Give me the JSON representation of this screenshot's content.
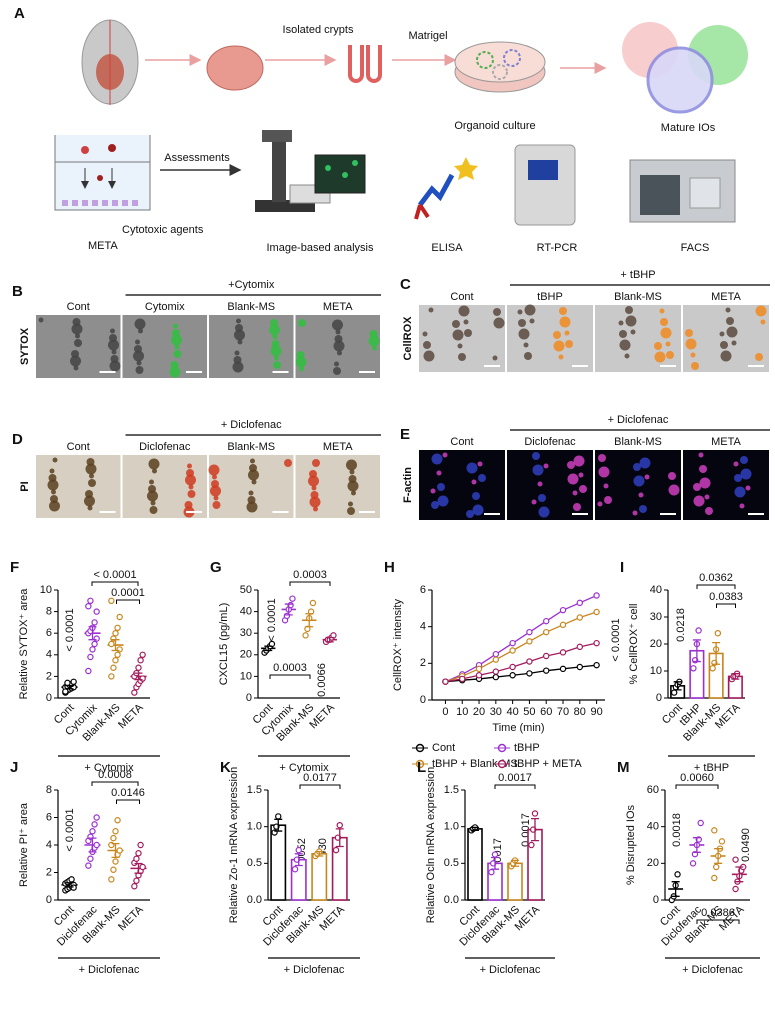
{
  "schematic": {
    "panel": "A",
    "labels": [
      "Isolated crypts",
      "Matrigel",
      "Organoid culture",
      "Mature IOs",
      "Assessments",
      "Cytotoxic agents",
      "META",
      "Image-based analysis",
      "ELISA",
      "RT-PCR",
      "FACS"
    ]
  },
  "images": [
    {
      "panel": "B",
      "stain": "SYTOX",
      "stain_color": "#1aa64a",
      "group": "+Cytomix",
      "columns": [
        "Cont",
        "Cytomix",
        "Blank-MS",
        "META"
      ]
    },
    {
      "panel": "C",
      "stain": "CellROX",
      "stain_color": "#d0202a",
      "group": "+ tBHP",
      "columns": [
        "Cont",
        "tBHP",
        "Blank-MS",
        "META"
      ]
    },
    {
      "panel": "D",
      "stain": "PI",
      "stain_color": "#d0202a",
      "group": "+ Diclofenac",
      "columns": [
        "Cont",
        "Diclofenac",
        "Blank-MS",
        "META"
      ]
    },
    {
      "panel": "E",
      "stain": "F-actin",
      "stain_color": "#d020c8",
      "group": "+ Diclofenac",
      "columns": [
        "Cont",
        "Diclofenac",
        "Blank-MS",
        "META"
      ]
    }
  ],
  "chart_data": [
    {
      "type": "dotplot",
      "panel": "F",
      "ylabel": "Relative SYTOX⁺ area",
      "group": "+ Cytomix",
      "categories": [
        "Cont",
        "Cytomix",
        "Blank-MS",
        "META"
      ],
      "colors": [
        "#000000",
        "#9b30d0",
        "#c8861e",
        "#a21b5c"
      ],
      "values": [
        1.0,
        6.0,
        4.9,
        2.0
      ],
      "errors": [
        0.15,
        0.6,
        0.5,
        0.3
      ],
      "points": [
        [
          0.5,
          0.7,
          0.8,
          0.9,
          1.0,
          1.0,
          1.1,
          1.2,
          1.3,
          1.5,
          0.6,
          1.4
        ],
        [
          2.5,
          3.8,
          4.5,
          5.0,
          5.5,
          6.0,
          6.2,
          6.5,
          7.0,
          8.0,
          8.5,
          9.0
        ],
        [
          2.0,
          2.8,
          3.5,
          4.0,
          4.5,
          5.0,
          5.5,
          6.0,
          6.5,
          7.5,
          9.0
        ],
        [
          0.5,
          1.0,
          1.3,
          1.6,
          1.8,
          2.0,
          2.3,
          2.8,
          3.5,
          4.0
        ]
      ],
      "ylim": [
        0,
        10
      ],
      "yticks": [
        0,
        2,
        4,
        6,
        8,
        10
      ],
      "annotations": [
        "< 0.0001",
        "< 0.0001",
        "0.0001"
      ]
    },
    {
      "type": "dotplot",
      "panel": "G",
      "ylabel": "CXCL15 (pg/mL)",
      "group": "+ Cytomix",
      "categories": [
        "Cont",
        "Cytomix",
        "Blank-MS",
        "META"
      ],
      "colors": [
        "#000000",
        "#9b30d0",
        "#c8861e",
        "#a21b5c"
      ],
      "values": [
        23,
        41,
        36,
        27
      ],
      "errors": [
        1,
        2.5,
        3,
        1
      ],
      "points": [
        [
          21,
          22,
          23,
          24,
          25
        ],
        [
          36,
          38,
          41,
          43,
          46
        ],
        [
          29,
          32,
          37,
          40,
          44
        ],
        [
          26,
          27,
          27,
          28,
          29
        ]
      ],
      "ylim": [
        0,
        50
      ],
      "yticks": [
        0,
        10,
        20,
        30,
        40,
        50
      ],
      "annotations": [
        "< 0.0001",
        "0.0003",
        "0.0003",
        "0.0066"
      ]
    },
    {
      "type": "line",
      "panel": "H",
      "ylabel": "CellROX⁺ intensity",
      "xlabel": "Time (min)",
      "x": [
        0,
        10,
        20,
        30,
        40,
        50,
        60,
        70,
        80,
        90
      ],
      "xlim": [
        -8,
        95
      ],
      "xticks": [
        0,
        10,
        20,
        30,
        40,
        50,
        60,
        70,
        80,
        90
      ],
      "ylim": [
        0,
        6
      ],
      "yticks": [
        0,
        2,
        4,
        6
      ],
      "series": [
        {
          "name": "Cont",
          "color": "#000000",
          "values": [
            1.0,
            1.08,
            1.15,
            1.25,
            1.35,
            1.45,
            1.6,
            1.7,
            1.8,
            1.9
          ]
        },
        {
          "name": "tBHP",
          "color": "#9b30d0",
          "values": [
            1.0,
            1.4,
            1.9,
            2.5,
            3.1,
            3.7,
            4.3,
            4.9,
            5.3,
            5.7
          ]
        },
        {
          "name": "tBHP + Blank-MS",
          "color": "#c8861e",
          "values": [
            1.0,
            1.3,
            1.7,
            2.2,
            2.7,
            3.2,
            3.7,
            4.1,
            4.5,
            4.8
          ]
        },
        {
          "name": "tBHP + META",
          "color": "#a21b5c",
          "values": [
            1.0,
            1.15,
            1.35,
            1.55,
            1.8,
            2.1,
            2.4,
            2.6,
            2.9,
            3.1
          ]
        }
      ],
      "annotations": [
        "< 0.0001"
      ]
    },
    {
      "type": "bar",
      "panel": "I",
      "ylabel": "% CellROX⁺ cell",
      "group": "+ tBHP",
      "categories": [
        "Cont",
        "tBHP",
        "Blank-MS",
        "META"
      ],
      "colors": [
        "#000000",
        "#9b30d0",
        "#c8861e",
        "#a21b5c"
      ],
      "values": [
        4.5,
        17.5,
        16.5,
        8
      ],
      "errors": [
        1.5,
        4,
        4,
        1
      ],
      "points": [
        [
          2,
          4,
          5,
          6
        ],
        [
          11,
          14,
          20,
          25
        ],
        [
          11,
          13,
          18,
          24
        ],
        [
          7,
          8,
          8,
          9
        ]
      ],
      "ylim": [
        0,
        40
      ],
      "yticks": [
        0,
        10,
        20,
        30,
        40
      ],
      "annotations": [
        "0.0218",
        "0.0362",
        "0.0383"
      ]
    },
    {
      "type": "dotplot",
      "panel": "J",
      "ylabel": "Relative PI⁺ area",
      "group": "+ Diclofenac",
      "categories": [
        "Cont",
        "Diclofenac",
        "Blank-MS",
        "META"
      ],
      "colors": [
        "#000000",
        "#9b30d0",
        "#c8861e",
        "#a21b5c"
      ],
      "values": [
        1.1,
        4.0,
        3.6,
        2.3
      ],
      "errors": [
        0.15,
        0.5,
        0.5,
        0.35
      ],
      "points": [
        [
          0.7,
          0.8,
          0.9,
          1.0,
          1.1,
          1.2,
          1.3,
          1.4,
          1.5,
          0.9
        ],
        [
          2.5,
          3.0,
          3.5,
          3.8,
          4.0,
          4.3,
          4.6,
          5.0,
          5.5,
          6.0
        ],
        [
          1.5,
          2.2,
          2.8,
          3.3,
          3.6,
          4.0,
          4.5,
          5.0,
          5.8
        ],
        [
          1.0,
          1.4,
          1.8,
          2.1,
          2.4,
          2.7,
          3.0,
          3.4,
          4.0
        ]
      ],
      "ylim": [
        0,
        8
      ],
      "yticks": [
        0,
        2,
        4,
        6,
        8
      ],
      "annotations": [
        "< 0.0001",
        "0.0008",
        "0.0146"
      ]
    },
    {
      "type": "bar",
      "panel": "K",
      "ylabel": "Relative Zo-1 mRNA expression",
      "group": "+ Diclofenac",
      "categories": [
        "Cont",
        "Diclofenac",
        "Blank-MS",
        "META"
      ],
      "colors": [
        "#000000",
        "#9b30d0",
        "#c8861e",
        "#a21b5c"
      ],
      "values": [
        1.02,
        0.55,
        0.63,
        0.85
      ],
      "errors": [
        0.08,
        0.08,
        0.03,
        0.12
      ],
      "points": [
        [
          0.92,
          1.0,
          1.14
        ],
        [
          0.42,
          0.55,
          0.68
        ],
        [
          0.6,
          0.63,
          0.66
        ],
        [
          0.68,
          0.85,
          1.02
        ]
      ],
      "ylim": [
        0,
        1.5
      ],
      "yticks": [
        {
          "value": 0,
          "label": "0.0"
        },
        {
          "value": 0.5,
          "label": "0.5"
        },
        {
          "value": 1,
          "label": "1.0"
        },
        {
          "value": 1.5,
          "label": "1.5"
        }
      ],
      "annotations": [
        "0.0052",
        "0.0430",
        "0.0177"
      ]
    },
    {
      "type": "bar",
      "panel": "L",
      "ylabel": "Relative Ocln mRNA expression",
      "group": "+ Diclofenac",
      "categories": [
        "Cont",
        "Diclofenac",
        "Blank-MS",
        "META"
      ],
      "colors": [
        "#000000",
        "#9b30d0",
        "#c8861e",
        "#a21b5c"
      ],
      "values": [
        0.97,
        0.5,
        0.5,
        0.96
      ],
      "errors": [
        0.02,
        0.08,
        0.04,
        0.15
      ],
      "points": [
        [
          0.95,
          0.97,
          0.99
        ],
        [
          0.38,
          0.5,
          0.62
        ],
        [
          0.46,
          0.5,
          0.54
        ],
        [
          0.75,
          0.96,
          1.18
        ]
      ],
      "ylim": [
        0,
        1.5
      ],
      "yticks": [
        {
          "value": 0,
          "label": "0.0"
        },
        {
          "value": 0.5,
          "label": "0.5"
        },
        {
          "value": 1,
          "label": "1.0"
        },
        {
          "value": 1.5,
          "label": "1.5"
        }
      ],
      "annotations": [
        "0.0017",
        "0.0017",
        "0.0017"
      ]
    },
    {
      "type": "dotplot",
      "panel": "M",
      "ylabel": "% Disrupted IOs",
      "group": "+ Diclofenac",
      "categories": [
        "Cont",
        "Diclofenac",
        "Blank-MS",
        "META"
      ],
      "colors": [
        "#000000",
        "#9b30d0",
        "#c8861e",
        "#a21b5c"
      ],
      "values": [
        6,
        30,
        24,
        14
      ],
      "errors": [
        4,
        4,
        4,
        4
      ],
      "points": [
        [
          0,
          2,
          8,
          14
        ],
        [
          20,
          25,
          30,
          33,
          42
        ],
        [
          12,
          18,
          24,
          28,
          32,
          38
        ],
        [
          6,
          10,
          13,
          16,
          18,
          22
        ]
      ],
      "ylim": [
        0,
        60
      ],
      "yticks": [
        0,
        20,
        40,
        60
      ],
      "annotations": [
        "0.0018",
        "0.0060",
        "0.0386",
        "0.0490"
      ]
    }
  ]
}
